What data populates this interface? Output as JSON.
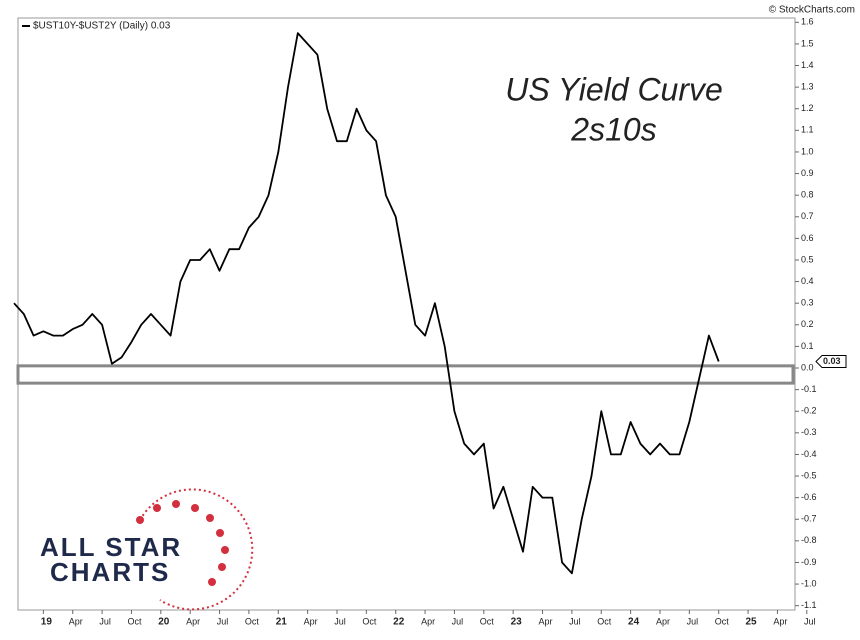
{
  "chart_data": {
    "type": "line",
    "title": "US Yield Curve",
    "subtitle": "2s10s",
    "credit": "© StockCharts.com",
    "logo": [
      "ALL STAR",
      "CHARTS"
    ],
    "x": [
      "2018-10",
      "2018-11",
      "2018-12",
      "2019-01",
      "2019-02",
      "2019-03",
      "2019-04",
      "2019-05",
      "2019-06",
      "2019-07",
      "2019-08",
      "2019-09",
      "2019-10",
      "2019-11",
      "2019-12",
      "2020-01",
      "2020-02",
      "2020-03",
      "2020-04",
      "2020-05",
      "2020-06",
      "2020-07",
      "2020-08",
      "2020-09",
      "2020-10",
      "2020-11",
      "2020-12",
      "2021-01",
      "2021-02",
      "2021-03",
      "2021-04",
      "2021-05",
      "2021-06",
      "2021-07",
      "2021-08",
      "2021-09",
      "2021-10",
      "2021-11",
      "2021-12",
      "2022-01",
      "2022-02",
      "2022-03",
      "2022-04",
      "2022-05",
      "2022-06",
      "2022-07",
      "2022-08",
      "2022-09",
      "2022-10",
      "2022-11",
      "2022-12",
      "2023-01",
      "2023-02",
      "2023-03",
      "2023-04",
      "2023-05",
      "2023-06",
      "2023-07",
      "2023-08",
      "2023-09",
      "2023-10",
      "2023-11",
      "2023-12",
      "2024-01",
      "2024-02",
      "2024-03",
      "2024-04",
      "2024-05",
      "2024-06",
      "2024-07",
      "2024-08",
      "2024-09",
      "2024-10"
    ],
    "series": [
      {
        "name": "$UST10Y-$UST2Y (Daily) 0.03",
        "color": "#000000",
        "values": [
          0.3,
          0.25,
          0.15,
          0.17,
          0.15,
          0.15,
          0.18,
          0.2,
          0.25,
          0.2,
          0.02,
          0.05,
          0.12,
          0.2,
          0.25,
          0.2,
          0.15,
          0.4,
          0.5,
          0.5,
          0.55,
          0.45,
          0.55,
          0.55,
          0.65,
          0.7,
          0.8,
          1.0,
          1.3,
          1.55,
          1.5,
          1.45,
          1.2,
          1.05,
          1.05,
          1.2,
          1.1,
          1.05,
          0.8,
          0.7,
          0.45,
          0.2,
          0.15,
          0.3,
          0.1,
          -0.2,
          -0.35,
          -0.4,
          -0.35,
          -0.65,
          -0.55,
          -0.7,
          -0.85,
          -0.55,
          -0.6,
          -0.6,
          -0.9,
          -0.95,
          -0.7,
          -0.5,
          -0.2,
          -0.4,
          -0.4,
          -0.25,
          -0.35,
          -0.4,
          -0.35,
          -0.4,
          -0.4,
          -0.25,
          -0.05,
          0.15,
          0.03
        ]
      }
    ],
    "last_value": 0.03,
    "band": [
      -0.07,
      0.01
    ],
    "xlim": [
      "2018-10",
      "2025-06"
    ],
    "xticks": [
      {
        "value": "2019-01",
        "label": "19"
      },
      {
        "value": "2019-04",
        "label": "Apr"
      },
      {
        "value": "2019-07",
        "label": "Jul"
      },
      {
        "value": "2019-10",
        "label": "Oct"
      },
      {
        "value": "2020-01",
        "label": "20"
      },
      {
        "value": "2020-04",
        "label": "Apr"
      },
      {
        "value": "2020-07",
        "label": "Jul"
      },
      {
        "value": "2020-10",
        "label": "Oct"
      },
      {
        "value": "2021-01",
        "label": "21"
      },
      {
        "value": "2021-04",
        "label": "Apr"
      },
      {
        "value": "2021-07",
        "label": "Jul"
      },
      {
        "value": "2021-10",
        "label": "Oct"
      },
      {
        "value": "2022-01",
        "label": "22"
      },
      {
        "value": "2022-04",
        "label": "Apr"
      },
      {
        "value": "2022-07",
        "label": "Jul"
      },
      {
        "value": "2022-10",
        "label": "Oct"
      },
      {
        "value": "2023-01",
        "label": "23"
      },
      {
        "value": "2023-04",
        "label": "Apr"
      },
      {
        "value": "2023-07",
        "label": "Jul"
      },
      {
        "value": "2023-10",
        "label": "Oct"
      },
      {
        "value": "2024-01",
        "label": "24"
      },
      {
        "value": "2024-04",
        "label": "Apr"
      },
      {
        "value": "2024-07",
        "label": "Jul"
      },
      {
        "value": "2024-10",
        "label": "Oct"
      },
      {
        "value": "2025-01",
        "label": "25"
      },
      {
        "value": "2025-04",
        "label": "Apr"
      },
      {
        "value": "2025-07",
        "label": "Jul"
      }
    ],
    "ylim": [
      -1.12,
      1.62
    ],
    "yticks": [
      1.6,
      1.5,
      1.4,
      1.3,
      1.2,
      1.1,
      {
        "value": 1,
        "label": "1.0"
      },
      0.9,
      0.8,
      0.7,
      0.6,
      0.5,
      0.4,
      0.3,
      0.2,
      0.1,
      {
        "value": 0,
        "label": "0.0"
      },
      -0.1,
      -0.2,
      -0.3,
      -0.4,
      -0.5,
      -0.6,
      -0.7,
      -0.8,
      -0.9,
      {
        "value": -1,
        "label": "-1.0"
      },
      -1.1
    ]
  }
}
